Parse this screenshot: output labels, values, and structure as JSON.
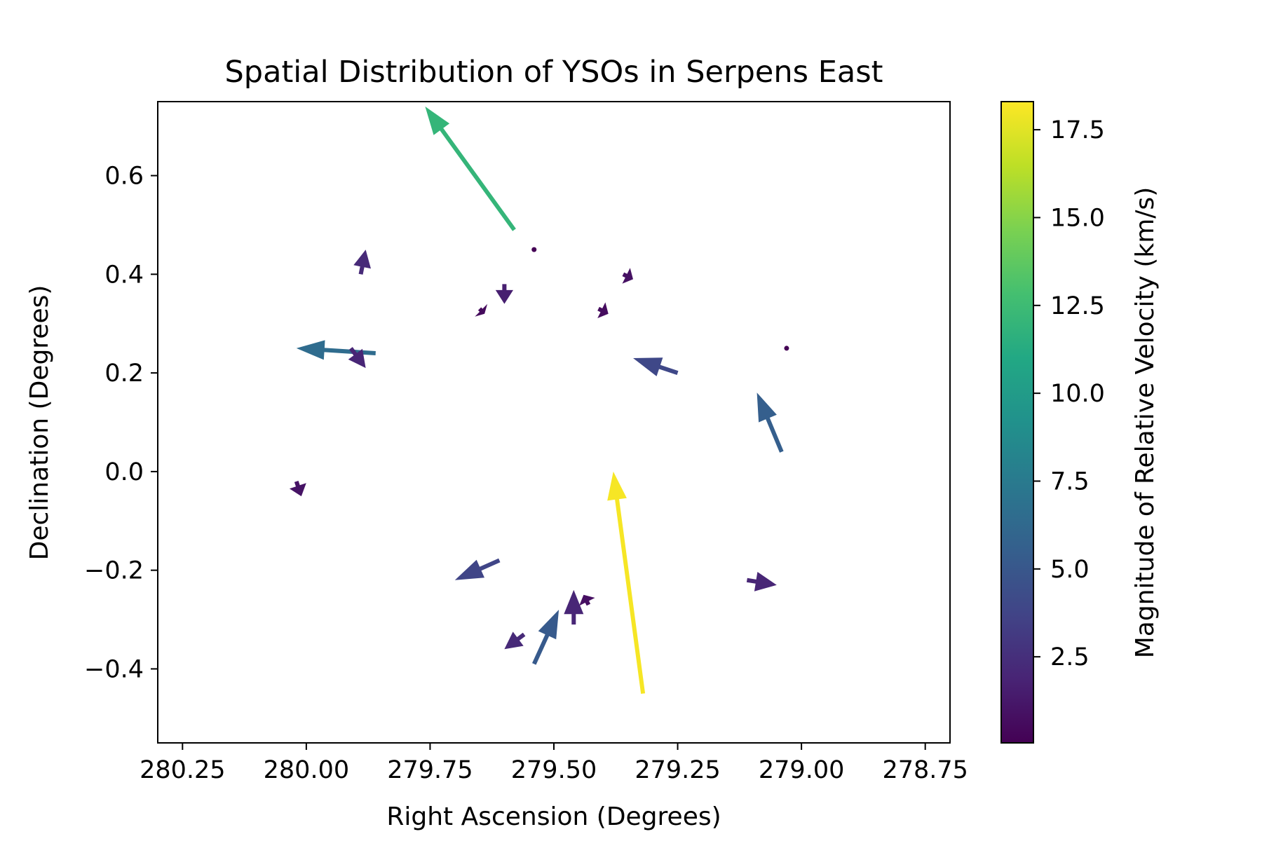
{
  "chart_data": {
    "type": "quiver",
    "title": "Spatial Distribution of YSOs in Serpens East",
    "xlabel": "Right Ascension (Degrees)",
    "ylabel": "Declination (Degrees)",
    "xlim": [
      280.3,
      278.7
    ],
    "ylim": [
      -0.55,
      0.75
    ],
    "x_inverted": true,
    "xticks": [
      280.25,
      280.0,
      279.75,
      279.5,
      279.25,
      279.0,
      278.75
    ],
    "xtick_labels": [
      "280.25",
      "280.00",
      "279.75",
      "279.50",
      "279.25",
      "279.00",
      "278.75"
    ],
    "yticks": [
      -0.4,
      -0.2,
      0.0,
      0.2,
      0.4,
      0.6
    ],
    "ytick_labels": [
      "−0.4",
      "−0.2",
      "0.0",
      "0.2",
      "0.4",
      "0.6"
    ],
    "grid": false,
    "colorbar": {
      "label": "Magnitude of Relative Velocity (km/s)",
      "range": [
        0.05,
        18.3
      ],
      "ticks": [
        2.5,
        5.0,
        7.5,
        10.0,
        12.5,
        15.0,
        17.5
      ],
      "tick_labels": [
        "2.5",
        "5.0",
        "7.5",
        "10.0",
        "12.5",
        "15.0",
        "17.5"
      ],
      "colormap": "viridis"
    },
    "vectors": [
      {
        "x": 279.58,
        "y": 0.49,
        "x_end": 279.76,
        "y_end": 0.74,
        "magnitude": 12.0
      },
      {
        "x": 279.32,
        "y": -0.45,
        "x_end": 279.38,
        "y_end": 0.0,
        "magnitude": 18.1
      },
      {
        "x": 279.86,
        "y": 0.24,
        "x_end": 280.02,
        "y_end": 0.25,
        "magnitude": 6.5
      },
      {
        "x": 279.04,
        "y": 0.04,
        "x_end": 279.09,
        "y_end": 0.16,
        "magnitude": 5.5
      },
      {
        "x": 279.25,
        "y": 0.2,
        "x_end": 279.34,
        "y_end": 0.23,
        "magnitude": 4.0
      },
      {
        "x": 279.61,
        "y": -0.18,
        "x_end": 279.7,
        "y_end": -0.22,
        "magnitude": 3.8
      },
      {
        "x": 279.54,
        "y": -0.39,
        "x_end": 279.49,
        "y_end": -0.28,
        "magnitude": 5.2
      },
      {
        "x": 279.56,
        "y": -0.33,
        "x_end": 279.6,
        "y_end": -0.36,
        "magnitude": 2.2
      },
      {
        "x": 279.46,
        "y": -0.31,
        "x_end": 279.46,
        "y_end": -0.24,
        "magnitude": 2.0
      },
      {
        "x": 279.43,
        "y": -0.27,
        "x_end": 279.44,
        "y_end": -0.25,
        "magnitude": 0.8
      },
      {
        "x": 279.11,
        "y": -0.22,
        "x_end": 279.05,
        "y_end": -0.23,
        "magnitude": 2.0
      },
      {
        "x": 279.89,
        "y": 0.4,
        "x_end": 279.88,
        "y_end": 0.45,
        "magnitude": 2.2
      },
      {
        "x": 279.91,
        "y": 0.25,
        "x_end": 279.88,
        "y_end": 0.21,
        "magnitude": 2.0
      },
      {
        "x": 279.6,
        "y": 0.38,
        "x_end": 279.6,
        "y_end": 0.34,
        "magnitude": 1.6
      },
      {
        "x": 279.36,
        "y": 0.4,
        "x_end": 279.34,
        "y_end": 0.39,
        "magnitude": 0.9
      },
      {
        "x": 279.41,
        "y": 0.33,
        "x_end": 279.39,
        "y_end": 0.32,
        "magnitude": 0.6
      },
      {
        "x": 279.65,
        "y": 0.33,
        "x_end": 279.64,
        "y_end": 0.32,
        "magnitude": 0.5
      },
      {
        "x": 280.02,
        "y": -0.02,
        "x_end": 280.01,
        "y_end": -0.05,
        "magnitude": 1.0
      },
      {
        "x": 279.54,
        "y": 0.45,
        "x_end": 279.54,
        "y_end": 0.45,
        "magnitude": 0.1
      },
      {
        "x": 279.03,
        "y": 0.25,
        "x_end": 279.03,
        "y_end": 0.25,
        "magnitude": 0.1
      }
    ]
  }
}
